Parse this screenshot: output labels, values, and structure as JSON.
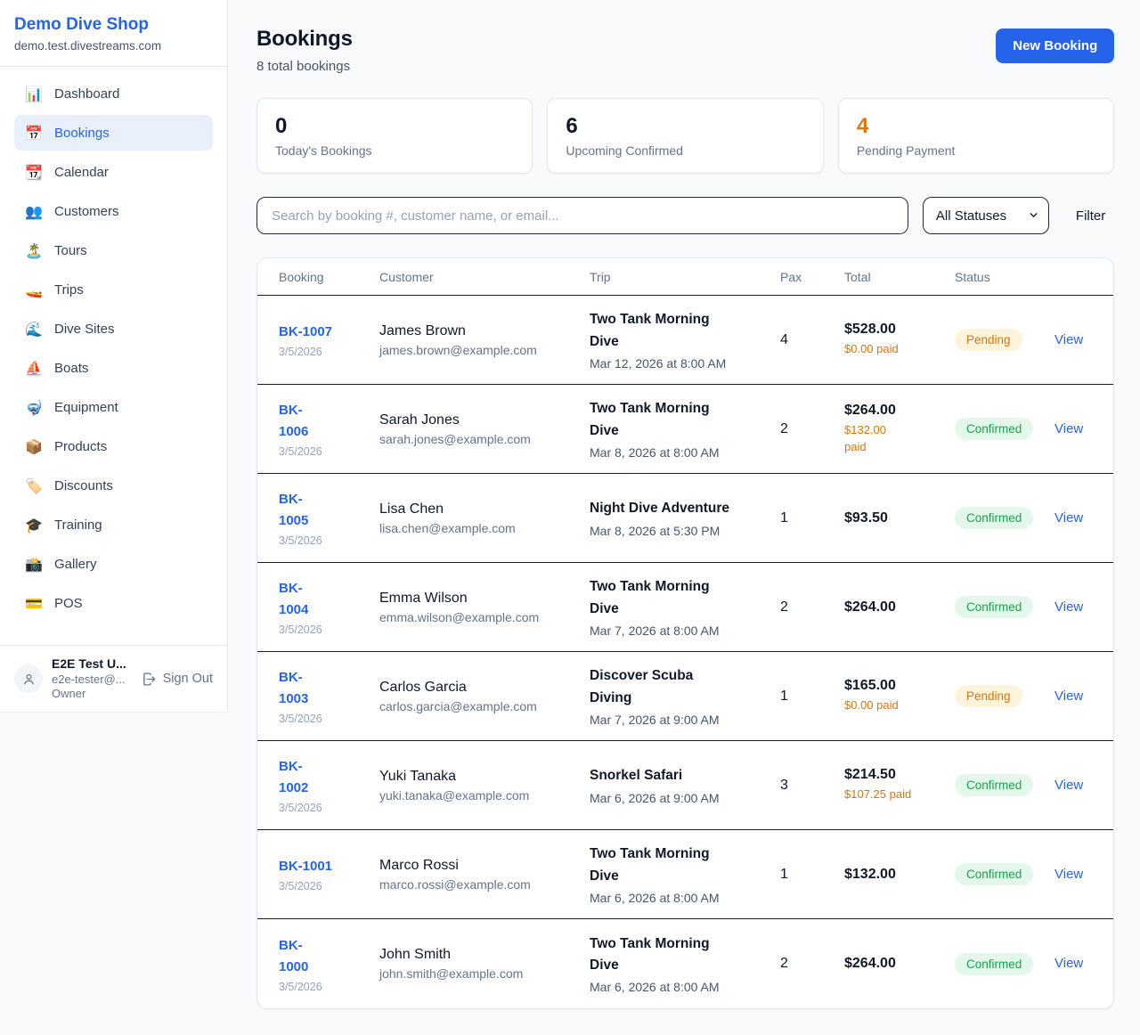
{
  "colors": {
    "primary": "#2563eb",
    "pending": "#d97706",
    "confirmed": "#16a34a"
  },
  "sidebar": {
    "title": "Demo Dive Shop",
    "domain": "demo.test.divestreams.com",
    "items": [
      {
        "icon": "📊",
        "icon_name": "bar-chart-icon",
        "label": "Dashboard",
        "active": false
      },
      {
        "icon": "📅",
        "icon_name": "calendar-icon",
        "label": "Bookings",
        "active": true
      },
      {
        "icon": "📆",
        "icon_name": "tear-off-calendar-icon",
        "label": "Calendar",
        "active": false
      },
      {
        "icon": "👥",
        "icon_name": "people-icon",
        "label": "Customers",
        "active": false
      },
      {
        "icon": "🏝️",
        "icon_name": "island-icon",
        "label": "Tours",
        "active": false
      },
      {
        "icon": "🚤",
        "icon_name": "speedboat-icon",
        "label": "Trips",
        "active": false
      },
      {
        "icon": "🌊",
        "icon_name": "wave-icon",
        "label": "Dive Sites",
        "active": false
      },
      {
        "icon": "⛵",
        "icon_name": "sailboat-icon",
        "label": "Boats",
        "active": false
      },
      {
        "icon": "🤿",
        "icon_name": "diving-mask-icon",
        "label": "Equipment",
        "active": false
      },
      {
        "icon": "📦",
        "icon_name": "package-icon",
        "label": "Products",
        "active": false
      },
      {
        "icon": "🏷️",
        "icon_name": "tag-icon",
        "label": "Discounts",
        "active": false
      },
      {
        "icon": "🎓",
        "icon_name": "graduation-cap-icon",
        "label": "Training",
        "active": false
      },
      {
        "icon": "📸",
        "icon_name": "camera-icon",
        "label": "Gallery",
        "active": false
      },
      {
        "icon": "💳",
        "icon_name": "credit-card-icon",
        "label": "POS",
        "active": false
      }
    ],
    "user": {
      "name": "E2E Test U...",
      "email": "e2e-tester@...",
      "role": "Owner",
      "sign_out_label": "Sign Out"
    }
  },
  "header": {
    "title": "Bookings",
    "subtitle": "8 total bookings",
    "new_booking_label": "New Booking"
  },
  "stats": [
    {
      "value": "0",
      "label": "Today's Bookings"
    },
    {
      "value": "6",
      "label": "Upcoming Confirmed"
    },
    {
      "value": "4",
      "label": "Pending Payment"
    }
  ],
  "filters": {
    "search_placeholder": "Search by booking #, customer name, or email...",
    "status_selected": "All Statuses",
    "filter_label": "Filter"
  },
  "table": {
    "columns": [
      "Booking",
      "Customer",
      "Trip",
      "Pax",
      "Total",
      "Status"
    ],
    "view_label": "View",
    "rows": [
      {
        "id": "BK-1007",
        "date": "3/5/2026",
        "customer": "James Brown",
        "email": "james.brown@example.com",
        "trip": "Two Tank Morning\nDive",
        "trip_datetime": "Mar 12, 2026 at 8:00 AM",
        "pax": "4",
        "total": "$528.00",
        "paid": "$0.00 paid",
        "status": "Pending"
      },
      {
        "id": "BK-\n1006",
        "date": "3/5/2026",
        "customer": "Sarah Jones",
        "email": "sarah.jones@example.com",
        "trip": "Two Tank Morning\nDive",
        "trip_datetime": "Mar 8, 2026 at 8:00 AM",
        "pax": "2",
        "total": "$264.00",
        "paid": "$132.00\npaid",
        "status": "Confirmed"
      },
      {
        "id": "BK-\n1005",
        "date": "3/5/2026",
        "customer": "Lisa Chen",
        "email": "lisa.chen@example.com",
        "trip": "Night Dive Adventure",
        "trip_datetime": "Mar 8, 2026 at 5:30 PM",
        "pax": "1",
        "total": "$93.50",
        "paid": "",
        "status": "Confirmed"
      },
      {
        "id": "BK-\n1004",
        "date": "3/5/2026",
        "customer": "Emma Wilson",
        "email": "emma.wilson@example.com",
        "trip": "Two Tank Morning\nDive",
        "trip_datetime": "Mar 7, 2026 at 8:00 AM",
        "pax": "2",
        "total": "$264.00",
        "paid": "",
        "status": "Confirmed"
      },
      {
        "id": "BK-\n1003",
        "date": "3/5/2026",
        "customer": "Carlos Garcia",
        "email": "carlos.garcia@example.com",
        "trip": "Discover Scuba\nDiving",
        "trip_datetime": "Mar 7, 2026 at 9:00 AM",
        "pax": "1",
        "total": "$165.00",
        "paid": "$0.00 paid",
        "status": "Pending"
      },
      {
        "id": "BK-\n1002",
        "date": "3/5/2026",
        "customer": "Yuki Tanaka",
        "email": "yuki.tanaka@example.com",
        "trip": "Snorkel Safari",
        "trip_datetime": "Mar 6, 2026 at 9:00 AM",
        "pax": "3",
        "total": "$214.50",
        "paid": "$107.25 paid",
        "status": "Confirmed"
      },
      {
        "id": "BK-1001",
        "date": "3/5/2026",
        "customer": "Marco Rossi",
        "email": "marco.rossi@example.com",
        "trip": "Two Tank Morning\nDive",
        "trip_datetime": "Mar 6, 2026 at 8:00 AM",
        "pax": "1",
        "total": "$132.00",
        "paid": "",
        "status": "Confirmed"
      },
      {
        "id": "BK-\n1000",
        "date": "3/5/2026",
        "customer": "John Smith",
        "email": "john.smith@example.com",
        "trip": "Two Tank Morning\nDive",
        "trip_datetime": "Mar 6, 2026 at 8:00 AM",
        "pax": "2",
        "total": "$264.00",
        "paid": "",
        "status": "Confirmed"
      }
    ]
  }
}
